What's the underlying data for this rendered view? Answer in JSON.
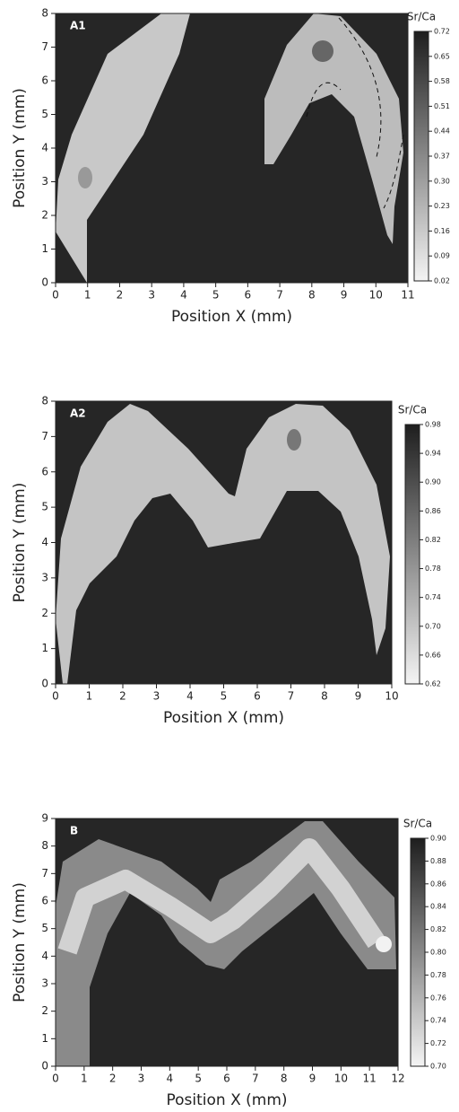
{
  "chart_data": [
    {
      "type": "contour",
      "panel_label": "A1",
      "xlabel": "Position X (mm)",
      "ylabel": "Position Y (mm)",
      "xlim": [
        0,
        11
      ],
      "xticks": [
        0,
        1,
        2,
        3,
        4,
        5,
        6,
        7,
        8,
        9,
        10,
        11
      ],
      "ylim": [
        0,
        8
      ],
      "yticks": [
        0,
        1,
        2,
        3,
        4,
        5,
        6,
        7,
        8
      ],
      "colorbar_label": "Sr/Ca",
      "clim": [
        0.02,
        0.72
      ],
      "cticks": [
        0.02,
        0.09,
        0.16,
        0.23,
        {
          "value": 0.3,
          "label": "0.30"
        },
        0.37,
        0.44,
        0.51,
        0.58,
        0.65,
        0.72
      ]
    },
    {
      "type": "contour",
      "panel_label": "A2",
      "xlabel": "Position X (mm)",
      "ylabel": "Position Y (mm)",
      "xlim": [
        0,
        10
      ],
      "xticks": [
        0,
        1,
        2,
        3,
        4,
        5,
        6,
        7,
        8,
        9,
        10
      ],
      "ylim": [
        0,
        8
      ],
      "yticks": [
        0,
        1,
        2,
        3,
        4,
        5,
        6,
        7,
        8
      ],
      "colorbar_label": "Sr/Ca",
      "clim": [
        0.62,
        0.98
      ],
      "cticks": [
        0.62,
        0.66,
        {
          "value": 0.7,
          "label": "0.70"
        },
        0.74,
        0.78,
        0.82,
        0.86,
        {
          "value": 0.9,
          "label": "0.90"
        },
        0.94,
        0.98
      ]
    },
    {
      "type": "contour",
      "panel_label": "B",
      "xlabel": "Position X (mm)",
      "ylabel": "Position Y (mm)",
      "xlim": [
        0,
        12
      ],
      "xticks": [
        0,
        1,
        2,
        3,
        4,
        5,
        6,
        7,
        8,
        9,
        10,
        11,
        12
      ],
      "ylim": [
        0,
        9
      ],
      "yticks": [
        0,
        1,
        2,
        3,
        4,
        5,
        6,
        7,
        8,
        9
      ],
      "colorbar_label": "Sr/Ca",
      "clim": [
        0.7,
        0.9
      ],
      "cticks": [
        {
          "value": 0.7,
          "label": "0.70"
        },
        0.72,
        0.74,
        0.76,
        0.78,
        {
          "value": 0.8,
          "label": "0.80"
        },
        0.82,
        0.84,
        0.86,
        0.88,
        {
          "value": 0.9,
          "label": "0.90"
        }
      ]
    }
  ]
}
